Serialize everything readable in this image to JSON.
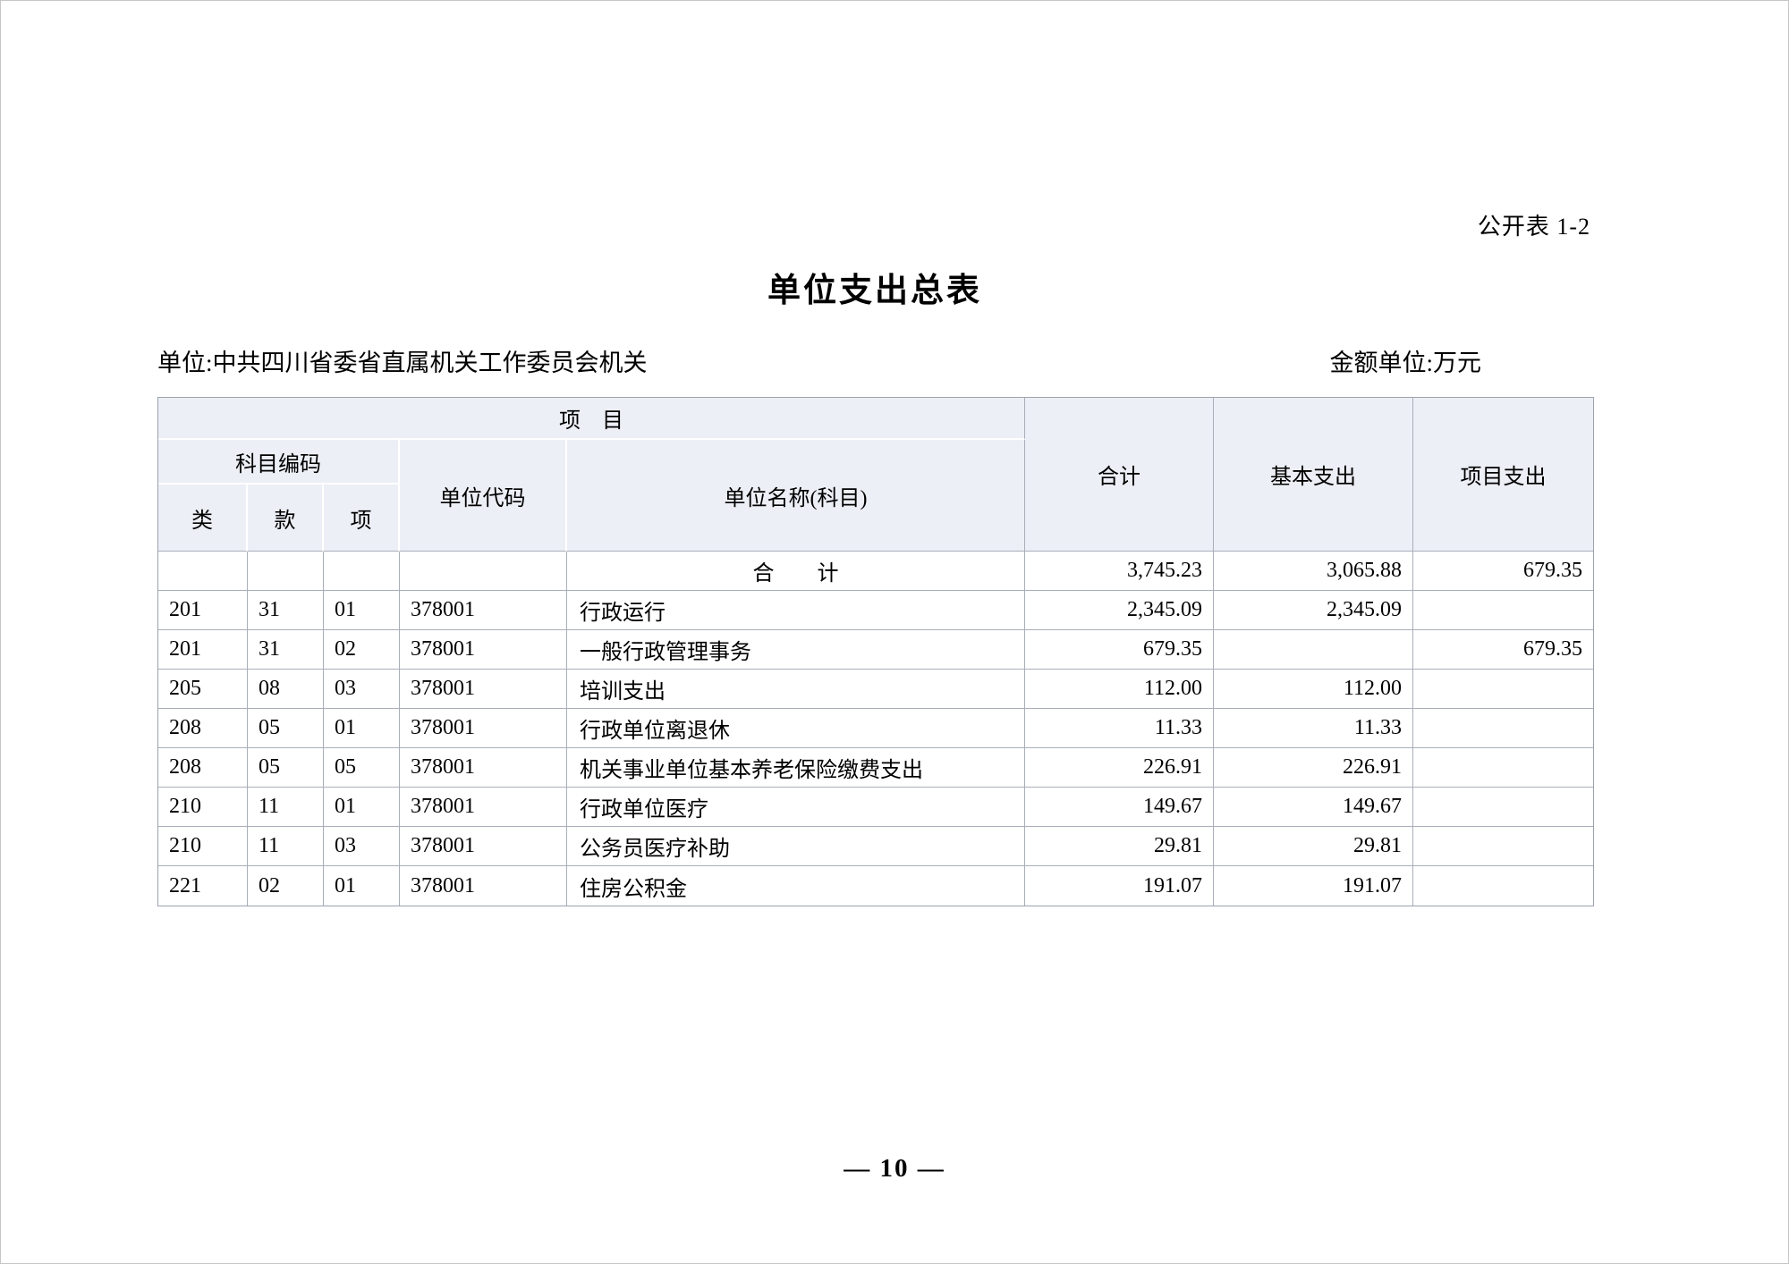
{
  "page": {
    "corner_label": "公开表 1-2",
    "title": "单位支出总表",
    "unit_label": "单位:中共四川省委省直属机关工作委员会机关",
    "amount_unit_label": "金额单位:万元",
    "page_number": "—  10  —"
  },
  "table": {
    "header": {
      "project": "项　目",
      "subject_code": "科目编码",
      "category": "类",
      "section": "款",
      "item": "项",
      "unit_code": "单位代码",
      "unit_name": "单位名称(科目)",
      "total": "合计",
      "basic": "基本支出",
      "project_exp": "项目支出"
    },
    "rows": [
      {
        "category": "",
        "section": "",
        "item": "",
        "unit_code": "",
        "unit_name": "合　　计",
        "total": "3,745.23",
        "basic": "3,065.88",
        "project": "679.35"
      },
      {
        "category": "201",
        "section": "31",
        "item": "01",
        "unit_code": "378001",
        "unit_name": "行政运行",
        "total": "2,345.09",
        "basic": "2,345.09",
        "project": ""
      },
      {
        "category": "201",
        "section": "31",
        "item": "02",
        "unit_code": "378001",
        "unit_name": "一般行政管理事务",
        "total": "679.35",
        "basic": "",
        "project": "679.35"
      },
      {
        "category": "205",
        "section": "08",
        "item": "03",
        "unit_code": "378001",
        "unit_name": "培训支出",
        "total": "112.00",
        "basic": "112.00",
        "project": ""
      },
      {
        "category": "208",
        "section": "05",
        "item": "01",
        "unit_code": "378001",
        "unit_name": "行政单位离退休",
        "total": "11.33",
        "basic": "11.33",
        "project": ""
      },
      {
        "category": "208",
        "section": "05",
        "item": "05",
        "unit_code": "378001",
        "unit_name": "机关事业单位基本养老保险缴费支出",
        "total": "226.91",
        "basic": "226.91",
        "project": ""
      },
      {
        "category": "210",
        "section": "11",
        "item": "01",
        "unit_code": "378001",
        "unit_name": "行政单位医疗",
        "total": "149.67",
        "basic": "149.67",
        "project": ""
      },
      {
        "category": "210",
        "section": "11",
        "item": "03",
        "unit_code": "378001",
        "unit_name": "公务员医疗补助",
        "total": "29.81",
        "basic": "29.81",
        "project": ""
      },
      {
        "category": "221",
        "section": "02",
        "item": "01",
        "unit_code": "378001",
        "unit_name": "住房公积金",
        "total": "191.07",
        "basic": "191.07",
        "project": ""
      }
    ]
  },
  "colors": {
    "header_bg": "#eceff5",
    "grid_line": "#a9aeb9",
    "text": "#000000"
  }
}
